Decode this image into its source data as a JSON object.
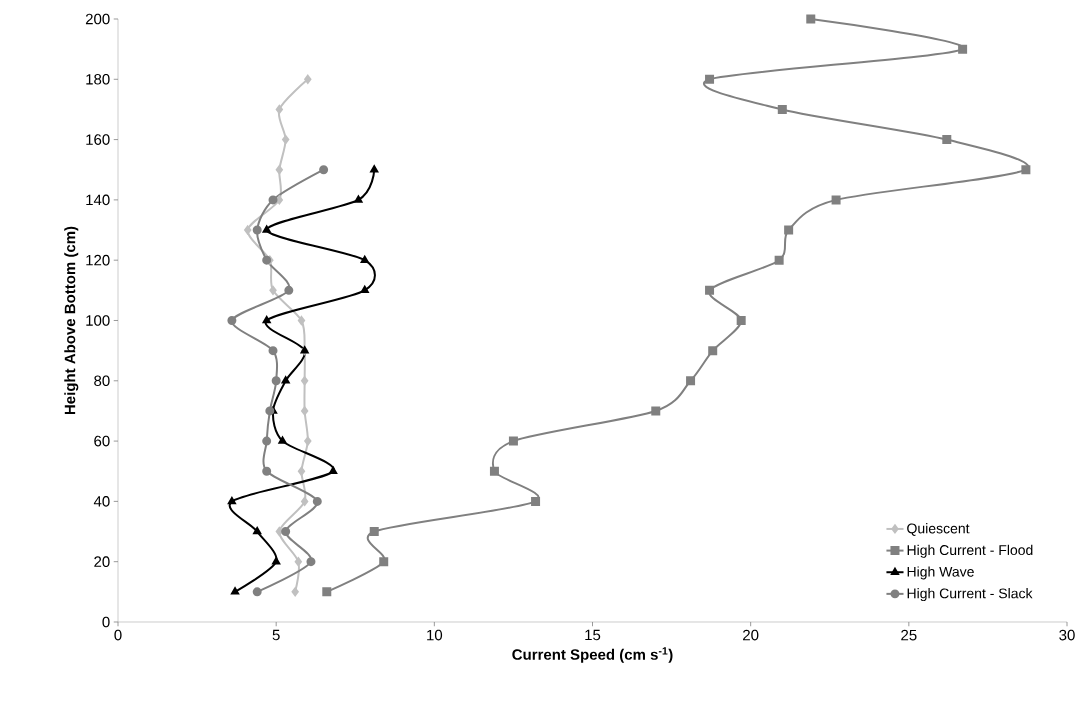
{
  "chart_data": {
    "type": "line",
    "xlabel": "Current Speed (cm s$^{-1}$)",
    "ylabel": "Height Above Bottom (cm)",
    "xlim": [
      0,
      30
    ],
    "ylim": [
      0,
      200
    ],
    "xticks": [
      0,
      5,
      10,
      15,
      20,
      25,
      30
    ],
    "yticks": [
      0,
      20,
      40,
      60,
      80,
      100,
      120,
      140,
      160,
      180,
      200
    ],
    "grid": false,
    "legend": "bottom right",
    "series": [
      {
        "name": "Quiescent",
        "color": "#c0c0c0",
        "marker": "diamond",
        "x": [
          5.6,
          5.7,
          5.1,
          5.9,
          5.8,
          6.0,
          5.9,
          5.9,
          5.9,
          5.8,
          4.9,
          4.8,
          4.1,
          5.1,
          5.1,
          5.3,
          5.1,
          6.0
        ],
        "values": [
          10,
          20,
          30,
          40,
          50,
          60,
          70,
          80,
          90,
          100,
          110,
          120,
          130,
          140,
          150,
          160,
          170,
          180
        ]
      },
      {
        "name": "High Current - Flood",
        "color": "#808080",
        "marker": "square",
        "x": [
          6.6,
          8.4,
          8.1,
          13.2,
          11.9,
          12.5,
          17.0,
          18.1,
          18.8,
          19.7,
          18.7,
          20.9,
          21.2,
          22.7,
          28.7,
          26.2,
          21.0,
          18.7,
          26.7,
          21.9
        ],
        "values": [
          10,
          20,
          30,
          40,
          50,
          60,
          70,
          80,
          90,
          100,
          110,
          120,
          130,
          140,
          150,
          160,
          170,
          180,
          190,
          200
        ]
      },
      {
        "name": "High Wave",
        "color": "#000000",
        "marker": "triangle",
        "x": [
          3.7,
          5.0,
          4.4,
          3.6,
          6.8,
          5.2,
          4.9,
          5.3,
          5.9,
          4.7,
          7.8,
          7.8,
          4.7,
          7.6,
          8.1
        ],
        "values": [
          10,
          20,
          30,
          40,
          50,
          60,
          70,
          80,
          90,
          100,
          110,
          120,
          130,
          140,
          150
        ]
      },
      {
        "name": "High Current - Slack",
        "color": "#808080",
        "marker": "circle",
        "x": [
          4.4,
          6.1,
          5.3,
          6.3,
          4.7,
          4.7,
          4.8,
          5.0,
          4.9,
          3.6,
          5.4,
          4.7,
          4.4,
          4.9,
          6.5
        ],
        "values": [
          10,
          20,
          30,
          40,
          50,
          60,
          70,
          80,
          90,
          100,
          110,
          120,
          130,
          140,
          150
        ]
      }
    ]
  }
}
